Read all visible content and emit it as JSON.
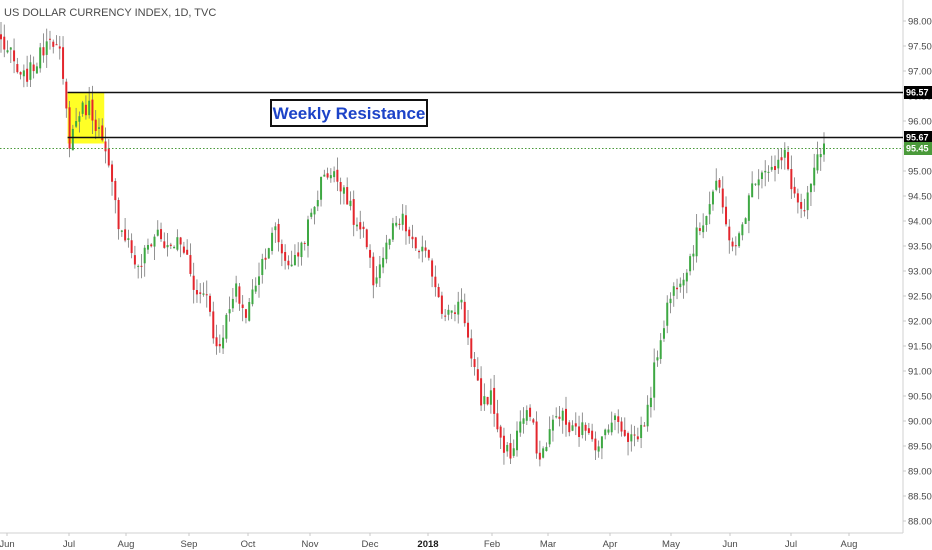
{
  "chart_data": {
    "type": "candlestick",
    "title": "US DOLLAR CURRENCY INDEX, 1D, TVC",
    "ylim": [
      87.8,
      98.2
    ],
    "y_ticks": [
      "98.00",
      "97.50",
      "97.00",
      "96.50",
      "96.00",
      "95.50",
      "95.00",
      "94.50",
      "94.00",
      "93.50",
      "93.00",
      "92.50",
      "92.00",
      "91.50",
      "91.00",
      "90.50",
      "90.00",
      "89.50",
      "89.00",
      "88.50",
      "88.00"
    ],
    "x_ticks": [
      "Jun",
      "Jul",
      "Aug",
      "Sep",
      "Oct",
      "Nov",
      "Dec",
      "2018",
      "Feb",
      "Mar",
      "Apr",
      "May",
      "Jun",
      "Jul",
      "Aug"
    ],
    "bold_x_tick": "2018",
    "anchors": [
      [
        0,
        97.6
      ],
      [
        3,
        97.3
      ],
      [
        6,
        96.8
      ],
      [
        9,
        97.0
      ],
      [
        12,
        97.3
      ],
      [
        15,
        97.8
      ],
      [
        18,
        97.3
      ],
      [
        21,
        95.6
      ],
      [
        24,
        96.2
      ],
      [
        27,
        96.3
      ],
      [
        30,
        95.8
      ],
      [
        33,
        95.0
      ],
      [
        36,
        94.0
      ],
      [
        39,
        93.6
      ],
      [
        42,
        93.0
      ],
      [
        45,
        93.5
      ],
      [
        48,
        93.8
      ],
      [
        51,
        93.4
      ],
      [
        54,
        93.6
      ],
      [
        57,
        93.3
      ],
      [
        60,
        92.5
      ],
      [
        63,
        92.6
      ],
      [
        66,
        91.4
      ],
      [
        69,
        92.0
      ],
      [
        72,
        92.6
      ],
      [
        75,
        92.1
      ],
      [
        78,
        92.8
      ],
      [
        81,
        93.4
      ],
      [
        84,
        93.8
      ],
      [
        87,
        93.2
      ],
      [
        90,
        93.2
      ],
      [
        93,
        93.7
      ],
      [
        96,
        94.3
      ],
      [
        99,
        95.0
      ],
      [
        102,
        94.9
      ],
      [
        105,
        94.7
      ],
      [
        108,
        94.0
      ],
      [
        111,
        93.7
      ],
      [
        114,
        92.8
      ],
      [
        117,
        93.3
      ],
      [
        120,
        93.8
      ],
      [
        123,
        94.0
      ],
      [
        126,
        93.5
      ],
      [
        129,
        93.4
      ],
      [
        132,
        93.0
      ],
      [
        135,
        92.3
      ],
      [
        138,
        92.1
      ],
      [
        141,
        92.5
      ],
      [
        144,
        91.2
      ],
      [
        147,
        90.4
      ],
      [
        150,
        90.5
      ],
      [
        153,
        89.6
      ],
      [
        156,
        89.3
      ],
      [
        159,
        90.0
      ],
      [
        162,
        90.1
      ],
      [
        165,
        89.2
      ],
      [
        168,
        89.8
      ],
      [
        171,
        90.2
      ],
      [
        174,
        89.8
      ],
      [
        177,
        89.8
      ],
      [
        180,
        89.9
      ],
      [
        183,
        89.4
      ],
      [
        186,
        90.0
      ],
      [
        189,
        90.0
      ],
      [
        192,
        89.7
      ],
      [
        195,
        89.7
      ],
      [
        198,
        90.2
      ],
      [
        201,
        91.4
      ],
      [
        204,
        92.3
      ],
      [
        207,
        92.8
      ],
      [
        210,
        93.1
      ],
      [
        213,
        93.7
      ],
      [
        216,
        94.2
      ],
      [
        219,
        94.8
      ],
      [
        222,
        93.9
      ],
      [
        225,
        93.4
      ],
      [
        228,
        94.2
      ],
      [
        231,
        94.9
      ],
      [
        234,
        95.1
      ],
      [
        237,
        95.0
      ],
      [
        240,
        95.3
      ],
      [
        243,
        94.5
      ],
      [
        246,
        94.1
      ],
      [
        249,
        95.0
      ],
      [
        252,
        95.6
      ]
    ],
    "num_candles": 253,
    "resistance_levels": [
      {
        "value": 96.57,
        "label": "96.57"
      },
      {
        "value": 95.67,
        "label": "95.67"
      }
    ],
    "current_price": {
      "value": 95.45,
      "label": "95.45",
      "color": "#4a9a3a"
    },
    "annotation": "Weekly Resistance",
    "highlight": {
      "from_candle": 21,
      "to_candle": 31,
      "y_top": 96.57,
      "y_bottom": 95.55,
      "color": "#ffff00"
    },
    "colors": {
      "up": "#3ea843",
      "down": "#e3262d",
      "resistance": "#111111",
      "annotation": "#1c43c8",
      "axis_tag": "#000000"
    }
  }
}
